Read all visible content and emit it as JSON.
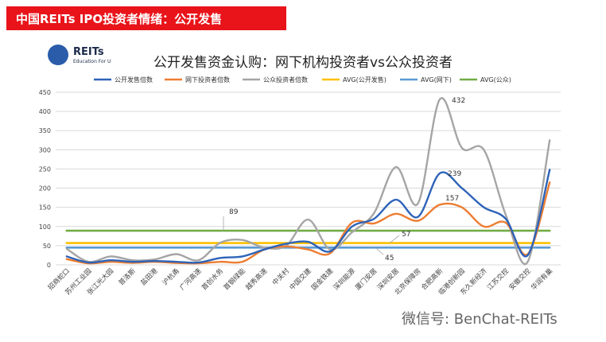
{
  "banner": {
    "title": "中国REITs IPO投资者情绪：公开发售"
  },
  "logo": {
    "name": "REITs",
    "tagline": "Education For U"
  },
  "watermark": "微信号: BenChat-REITs",
  "colors": {
    "banner": "#e8141a",
    "public_multiple": "#2e63b8",
    "offline_multiple": "#ed7d31",
    "retail_multiple": "#a5a5a5",
    "avg_public": "#ffc000",
    "avg_offline": "#5b9bd5",
    "avg_retail": "#70ad47"
  },
  "chart_data": {
    "type": "line",
    "title": "公开发售资金认购：网下机构投资者vs公众投资者",
    "xlabel": "",
    "ylabel": "",
    "ylim": [
      0,
      450
    ],
    "yticks": [
      0,
      50,
      100,
      150,
      200,
      250,
      300,
      350,
      400,
      450
    ],
    "grid": true,
    "legend": "top",
    "smooth": true,
    "categories": [
      "招商蛇口",
      "苏州工业园",
      "张江光大园",
      "普洛斯",
      "盐田港",
      "沪杭甬",
      "广河高速",
      "首创水务",
      "首钢绿能",
      "越秀高速",
      "中关村",
      "中国交建",
      "国金铁建",
      "深圳能源",
      "厦门安居",
      "深圳安居",
      "北京保障房",
      "合肥高新",
      "临港创新园",
      "东久新经济",
      "江苏交控",
      "安徽交控",
      "华润有巢"
    ],
    "series": [
      {
        "name": "公开发售倍数",
        "values": [
          22,
          6,
          12,
          8,
          10,
          8,
          6,
          18,
          22,
          40,
          55,
          60,
          35,
          100,
          120,
          170,
          125,
          239,
          200,
          150,
          120,
          25,
          248
        ]
      },
      {
        "name": "网下投资者倍数",
        "values": [
          15,
          4,
          8,
          5,
          8,
          5,
          4,
          8,
          8,
          40,
          48,
          40,
          30,
          110,
          108,
          133,
          115,
          157,
          150,
          100,
          110,
          28,
          215
        ]
      },
      {
        "name": "公众投资者倍数",
        "values": [
          42,
          8,
          22,
          12,
          14,
          28,
          12,
          58,
          65,
          45,
          50,
          118,
          40,
          85,
          135,
          255,
          160,
          432,
          305,
          300,
          130,
          8,
          325
        ]
      },
      {
        "name": "AVG(公开发售)",
        "values": [
          57,
          57,
          57,
          57,
          57,
          57,
          57,
          57,
          57,
          57,
          57,
          57,
          57,
          57,
          57,
          57,
          57,
          57,
          57,
          57,
          57,
          57,
          57
        ]
      },
      {
        "name": "AVG(网下)",
        "values": [
          45,
          45,
          45,
          45,
          45,
          45,
          45,
          45,
          45,
          45,
          45,
          45,
          45,
          45,
          45,
          45,
          45,
          45,
          45,
          45,
          45,
          45,
          45
        ]
      },
      {
        "name": "AVG(公众)",
        "values": [
          89,
          89,
          89,
          89,
          89,
          89,
          89,
          89,
          89,
          89,
          89,
          89,
          89,
          89,
          89,
          89,
          89,
          89,
          89,
          89,
          89,
          89,
          89
        ]
      }
    ],
    "annotations": [
      {
        "text": "432"
      },
      {
        "text": "239"
      },
      {
        "text": "157"
      },
      {
        "text": "89"
      },
      {
        "text": "57"
      },
      {
        "text": "45"
      }
    ]
  }
}
